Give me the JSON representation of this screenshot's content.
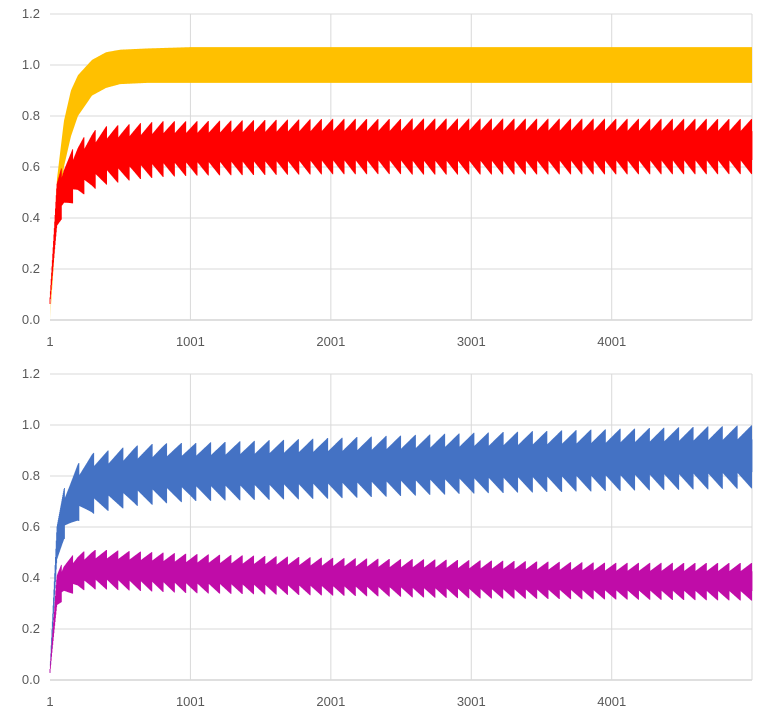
{
  "chart_data": [
    {
      "type": "line",
      "title": "",
      "xlabel": "",
      "ylabel": "",
      "xlim": [
        1,
        5000
      ],
      "ylim": [
        0,
        1.2
      ],
      "x_tick_labels": [
        "1",
        "1001",
        "2001",
        "3001",
        "4001"
      ],
      "x_ticks": [
        1,
        1001,
        2001,
        3001,
        4001
      ],
      "y_tick_labels": [
        "0.0",
        "0.2",
        "0.4",
        "0.6",
        "0.8",
        "1.0",
        "1.2"
      ],
      "y_ticks": [
        0,
        0.2,
        0.4,
        0.6,
        0.8,
        1.0,
        1.2
      ],
      "grid": true,
      "legend": "none",
      "series": [
        {
          "color": "#FFC000",
          "x": [
            1,
            50,
            100,
            150,
            200,
            300,
            400,
            500,
            700,
            1000,
            2000,
            3000,
            4000,
            5000
          ],
          "upper": [
            0.0,
            0.55,
            0.78,
            0.9,
            0.96,
            1.02,
            1.05,
            1.06,
            1.065,
            1.07,
            1.07,
            1.07,
            1.07,
            1.07
          ],
          "lower": [
            0.0,
            0.4,
            0.6,
            0.72,
            0.8,
            0.88,
            0.91,
            0.925,
            0.93,
            0.93,
            0.93,
            0.93,
            0.93,
            0.93
          ],
          "oscillation_periods": 0
        },
        {
          "color": "#FF0000",
          "x": [
            1,
            50,
            100,
            200,
            300,
            400,
            600,
            800,
            1000,
            2000,
            3000,
            4000,
            5000
          ],
          "upper": [
            0.1,
            0.55,
            0.62,
            0.7,
            0.74,
            0.76,
            0.77,
            0.78,
            0.78,
            0.79,
            0.79,
            0.79,
            0.79
          ],
          "lower": [
            0.05,
            0.35,
            0.42,
            0.48,
            0.51,
            0.53,
            0.55,
            0.56,
            0.565,
            0.57,
            0.57,
            0.57,
            0.57
          ],
          "oscillation_periods": 62
        }
      ]
    },
    {
      "type": "line",
      "title": "",
      "xlabel": "",
      "ylabel": "",
      "xlim": [
        1,
        5000
      ],
      "ylim": [
        0,
        1.2
      ],
      "x_tick_labels": [
        "1",
        "1001",
        "2001",
        "3001",
        "4001"
      ],
      "x_ticks": [
        1,
        1001,
        2001,
        3001,
        4001
      ],
      "y_tick_labels": [
        "0.0",
        "0.2",
        "0.4",
        "0.6",
        "0.8",
        "1.0",
        "1.2"
      ],
      "y_ticks": [
        0,
        0.2,
        0.4,
        0.6,
        0.8,
        1.0,
        1.2
      ],
      "grid": true,
      "legend": "none",
      "series": [
        {
          "color": "#4472C4",
          "x": [
            1,
            50,
            100,
            200,
            300,
            400,
            600,
            800,
            1000,
            2000,
            3000,
            4000,
            5000
          ],
          "upper": [
            0.05,
            0.62,
            0.75,
            0.85,
            0.89,
            0.9,
            0.92,
            0.93,
            0.93,
            0.95,
            0.97,
            0.985,
            1.0
          ],
          "lower": [
            0.02,
            0.45,
            0.55,
            0.62,
            0.65,
            0.66,
            0.68,
            0.69,
            0.7,
            0.71,
            0.73,
            0.74,
            0.75
          ],
          "oscillation_periods": 48
        },
        {
          "color": "#C00CA8",
          "x": [
            1,
            50,
            100,
            200,
            300,
            400,
            600,
            800,
            1000,
            2000,
            3000,
            4000,
            5000
          ],
          "upper": [
            0.05,
            0.42,
            0.47,
            0.5,
            0.51,
            0.51,
            0.505,
            0.5,
            0.495,
            0.48,
            0.47,
            0.46,
            0.46
          ],
          "lower": [
            0.02,
            0.28,
            0.32,
            0.35,
            0.355,
            0.355,
            0.35,
            0.345,
            0.34,
            0.33,
            0.32,
            0.315,
            0.31
          ],
          "oscillation_periods": 62
        }
      ]
    }
  ]
}
